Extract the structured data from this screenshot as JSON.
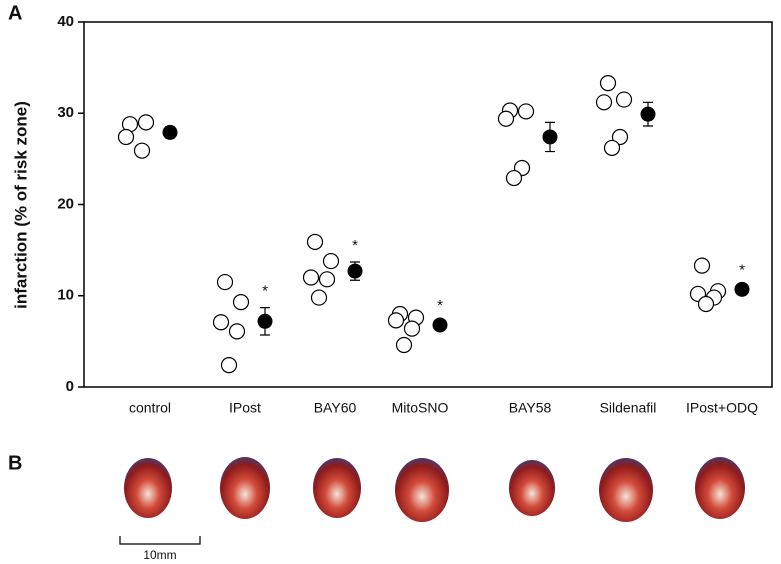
{
  "panel_labels": [
    "A",
    "B"
  ],
  "chart_data": {
    "type": "dotplot",
    "y_label": "infarction (% of risk zone)",
    "ylim": [
      0,
      40
    ],
    "yticks": [
      0,
      10,
      20,
      30,
      40
    ],
    "point_color": "#ffffff",
    "mean_color": "#000000",
    "groups": [
      {
        "category": "control",
        "points": [
          28.8,
          29,
          27.4,
          25.9
        ],
        "mean": 27.9,
        "error": 0.6
      },
      {
        "category": "IPost",
        "points": [
          11.5,
          9.3,
          7.1,
          6.1,
          2.4
        ],
        "mean": 7.2,
        "error": 1.5,
        "annotation": "*"
      },
      {
        "category": "BAY60",
        "points": [
          15.9,
          13.8,
          12.0,
          11.8,
          9.8
        ],
        "mean": 12.7,
        "error": 1.0,
        "annotation": "*"
      },
      {
        "category": "MitoSNO",
        "points": [
          8.0,
          7.6,
          7.3,
          6.4,
          4.6
        ],
        "mean": 6.8,
        "error": 0.3,
        "annotation": "*"
      },
      {
        "category": "BAY58",
        "points": [
          30.3,
          30.2,
          29.4,
          24.0,
          22.9
        ],
        "mean": 27.4,
        "error": 1.6
      },
      {
        "category": "Sildenafil",
        "points": [
          33.3,
          31.5,
          31.2,
          27.4,
          26.2
        ],
        "mean": 29.9,
        "error": 1.3
      },
      {
        "category": "IPost+ODQ",
        "points": [
          13.3,
          10.5,
          10.2,
          9.8,
          9.1
        ],
        "mean": 10.7,
        "error": 0.3,
        "annotation": "*"
      }
    ]
  },
  "scale_bar": "10mm"
}
